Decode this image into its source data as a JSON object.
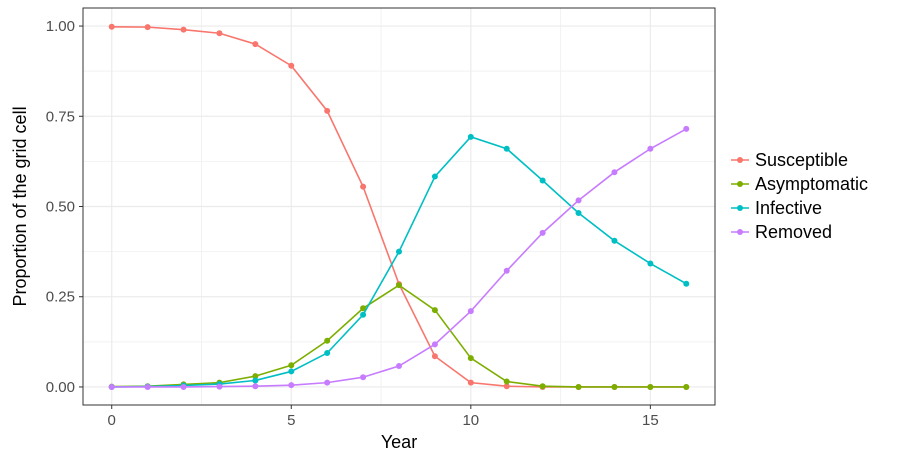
{
  "chart_data": {
    "type": "line",
    "title": "",
    "xlabel": "Year",
    "ylabel": "Proportion of the grid cell",
    "xlim": [
      -0.8,
      16.8
    ],
    "ylim": [
      -0.05,
      1.05
    ],
    "x_ticks": [
      0,
      5,
      10,
      15
    ],
    "x_tick_labels": [
      "0",
      "5",
      "10",
      "15"
    ],
    "y_ticks": [
      0,
      0.25,
      0.5,
      0.75,
      1
    ],
    "y_tick_labels": [
      "0.00",
      "0.25",
      "0.50",
      "0.75",
      "1.00"
    ],
    "grid": true,
    "legend_position": "right",
    "x": [
      0,
      1,
      2,
      3,
      4,
      5,
      6,
      7,
      8,
      9,
      10,
      11,
      12,
      13,
      14,
      15,
      16
    ],
    "series": [
      {
        "name": "Susceptible",
        "color": "#F8766D",
        "values": [
          0.998,
          0.997,
          0.99,
          0.98,
          0.95,
          0.89,
          0.765,
          0.555,
          0.285,
          0.085,
          0.012,
          0.002,
          0.0,
          0.0,
          0.0,
          0.0,
          0.0
        ]
      },
      {
        "name": "Asymptomatic",
        "color": "#7CAE00",
        "values": [
          0.001,
          0.002,
          0.007,
          0.012,
          0.03,
          0.06,
          0.128,
          0.218,
          0.282,
          0.213,
          0.08,
          0.015,
          0.002,
          0.0,
          0.0,
          0.0,
          0.0
        ]
      },
      {
        "name": "Infective",
        "color": "#00BFC4",
        "values": [
          0.0,
          0.001,
          0.004,
          0.008,
          0.018,
          0.043,
          0.094,
          0.2,
          0.375,
          0.583,
          0.693,
          0.66,
          0.572,
          0.482,
          0.405,
          0.342,
          0.286
        ]
      },
      {
        "name": "Removed",
        "color": "#C77CFF",
        "values": [
          0.0,
          0.0,
          0.0,
          0.001,
          0.002,
          0.005,
          0.012,
          0.027,
          0.058,
          0.118,
          0.21,
          0.322,
          0.427,
          0.517,
          0.595,
          0.66,
          0.715
        ]
      }
    ]
  }
}
